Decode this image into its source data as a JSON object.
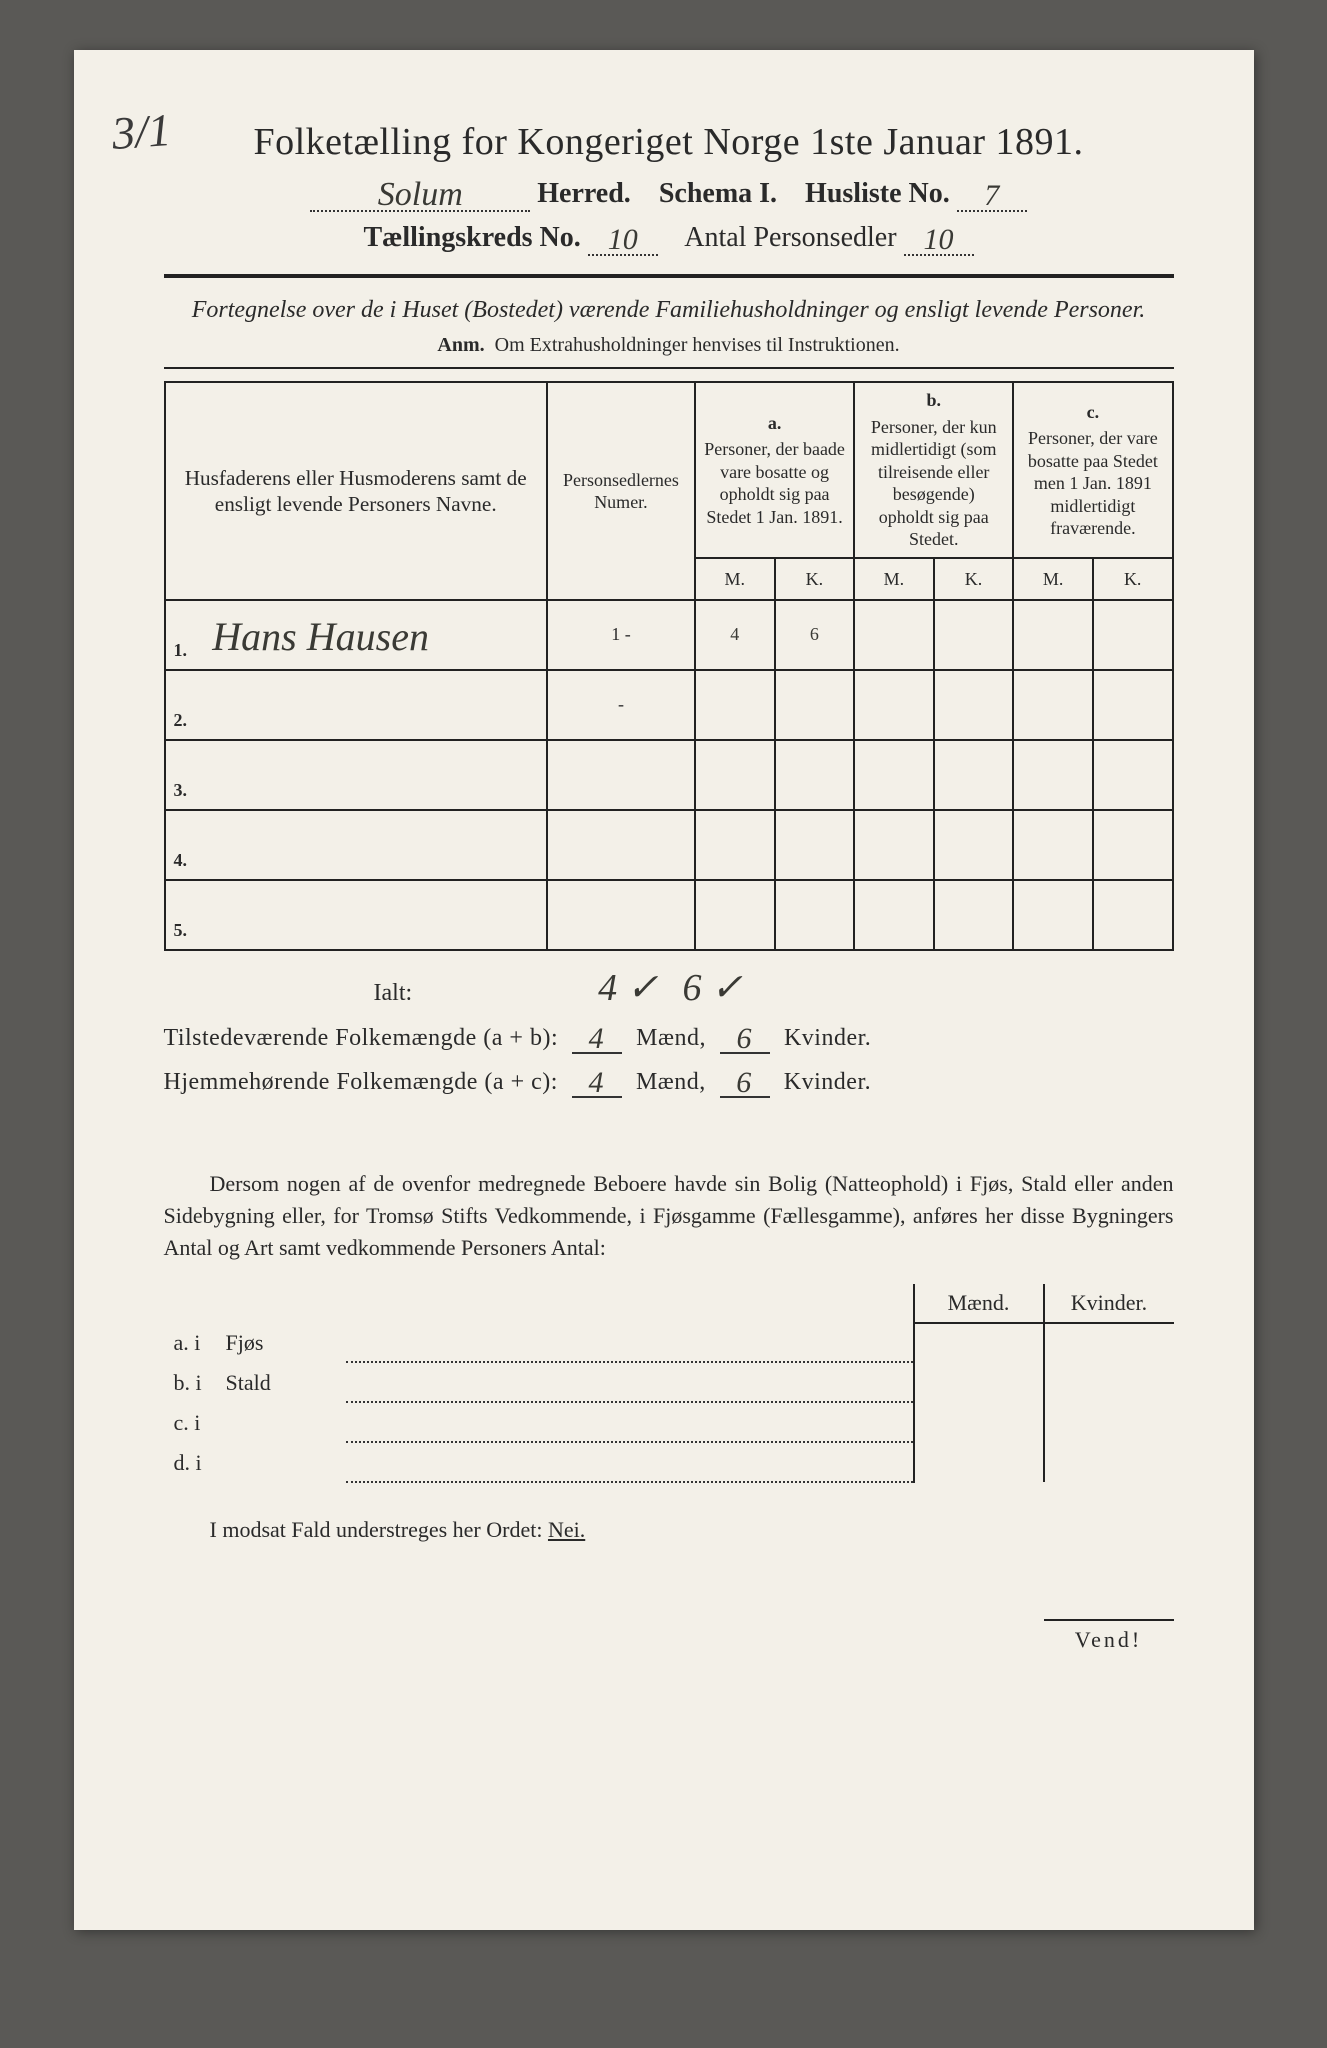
{
  "margin_note": "3/1",
  "title": "Folketælling for Kongeriget Norge 1ste Januar 1891.",
  "header": {
    "herred_label": "Herred.",
    "herred_value": "Solum",
    "schema_label": "Schema I.",
    "husliste_label": "Husliste No.",
    "husliste_value": "7",
    "kreds_label": "Tællingskreds No.",
    "kreds_value": "10",
    "antal_label": "Antal Personsedler",
    "antal_value": "10"
  },
  "subtitle": "Fortegnelse over de i Huset (Bostedet) værende Familiehusholdninger og ensligt levende Personer.",
  "anm_label": "Anm.",
  "anm_text": "Om Extrahusholdninger henvises til Instruktionen.",
  "table": {
    "col1": "Husfaderens eller Husmoderens samt de ensligt levende Personers Navne.",
    "col2": "Personsedlernes Numer.",
    "col_a_letter": "a.",
    "col_a": "Personer, der baade vare bosatte og opholdt sig paa Stedet 1 Jan. 1891.",
    "col_b_letter": "b.",
    "col_b": "Personer, der kun midlertidigt (som tilreisende eller besøgende) opholdt sig paa Stedet.",
    "col_c_letter": "c.",
    "col_c": "Personer, der vare bosatte paa Stedet men 1 Jan. 1891 midlertidigt fraværende.",
    "m": "M.",
    "k": "K.",
    "rows": [
      {
        "n": "1.",
        "name": "Hans Hausen",
        "num": "1 -",
        "a_m": "4",
        "a_k": "6",
        "b_m": "",
        "b_k": "",
        "c_m": "",
        "c_k": ""
      },
      {
        "n": "2.",
        "name": "",
        "num": "-",
        "a_m": "",
        "a_k": "",
        "b_m": "",
        "b_k": "",
        "c_m": "",
        "c_k": ""
      },
      {
        "n": "3.",
        "name": "",
        "num": "",
        "a_m": "",
        "a_k": "",
        "b_m": "",
        "b_k": "",
        "c_m": "",
        "c_k": ""
      },
      {
        "n": "4.",
        "name": "",
        "num": "",
        "a_m": "",
        "a_k": "",
        "b_m": "",
        "b_k": "",
        "c_m": "",
        "c_k": ""
      },
      {
        "n": "5.",
        "name": "",
        "num": "",
        "a_m": "",
        "a_k": "",
        "b_m": "",
        "b_k": "",
        "c_m": "",
        "c_k": ""
      }
    ],
    "ialt_label": "Ialt:",
    "ialt_m": "4 ✓",
    "ialt_k": "6 ✓"
  },
  "pop": {
    "line1_label": "Tilstedeværende Folkemængde (a + b):",
    "line2_label": "Hjemmehørende Folkemængde (a + c):",
    "maend": "Mænd,",
    "kvinder": "Kvinder.",
    "l1_m": "4",
    "l1_k": "6",
    "l2_m": "4",
    "l2_k": "6"
  },
  "body_para": "Dersom nogen af de ovenfor medregnede Beboere havde sin Bolig (Natteophold) i Fjøs, Stald eller anden Sidebygning eller, for Tromsø Stifts Vedkommende, i Fjøsgamme (Fællesgamme), anføres her disse Bygningers Antal og Art samt vedkommende Personers Antal:",
  "side": {
    "maend": "Mænd.",
    "kvinder": "Kvinder.",
    "rows": [
      {
        "label": "a.  i",
        "type": "Fjøs"
      },
      {
        "label": "b.  i",
        "type": "Stald"
      },
      {
        "label": "c.  i",
        "type": ""
      },
      {
        "label": "d.  i",
        "type": ""
      }
    ]
  },
  "modsat": "I modsat Fald understreges her Ordet:",
  "nei": "Nei.",
  "vend": "Vend!"
}
